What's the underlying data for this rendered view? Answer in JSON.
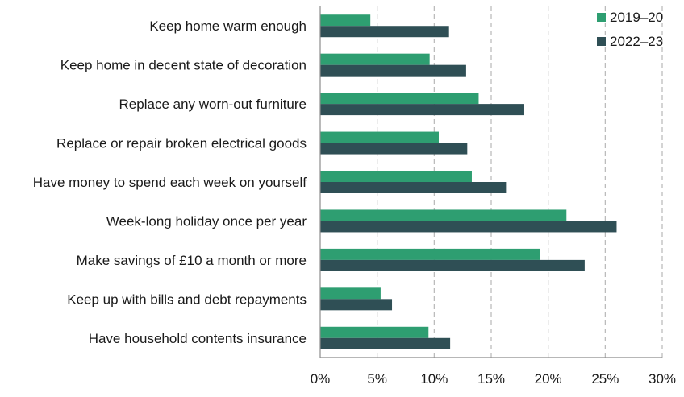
{
  "chart_data": {
    "type": "bar",
    "orientation": "horizontal",
    "categories": [
      "Keep home warm enough",
      "Keep home in decent state of decoration",
      "Replace any worn-out furniture",
      "Replace or repair broken electrical goods",
      "Have money to spend each week on yourself",
      "Week-long holiday once per year",
      "Make savings of £10 a month or more",
      "Keep up with bills and debt repayments",
      "Have household contents insurance"
    ],
    "series": [
      {
        "name": "2019–20",
        "color": "#2e9e71",
        "values": [
          4.4,
          9.6,
          13.9,
          10.4,
          13.3,
          21.6,
          19.3,
          5.3,
          9.5
        ]
      },
      {
        "name": "2022–23",
        "color": "#2f4f55",
        "values": [
          11.3,
          12.8,
          17.9,
          12.9,
          16.3,
          26.0,
          23.2,
          6.3,
          11.4
        ]
      }
    ],
    "x_ticks": [
      "0%",
      "5%",
      "10%",
      "15%",
      "20%",
      "25%",
      "30%"
    ],
    "xlim": [
      0,
      30
    ],
    "grid": "vertical dashed",
    "legend_position": "top-right",
    "title": "",
    "xlabel": "",
    "ylabel": ""
  }
}
